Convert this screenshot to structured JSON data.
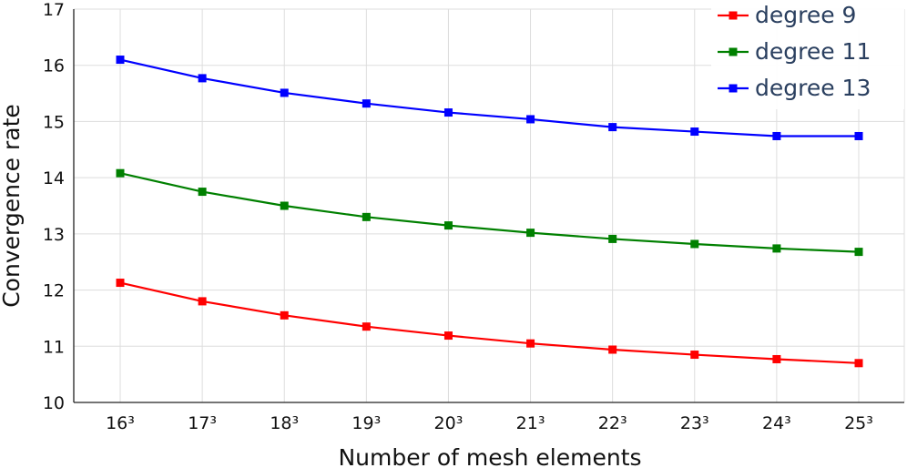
{
  "chart_data": {
    "type": "line",
    "title": "",
    "xlabel": "Number of mesh elements",
    "ylabel": "Convergence rate",
    "ylim": [
      10,
      17
    ],
    "yticks": [
      10,
      11,
      12,
      13,
      14,
      15,
      16,
      17
    ],
    "x": [
      16,
      17,
      18,
      19,
      20,
      21,
      22,
      23,
      24,
      25
    ],
    "x_tick_labels": [
      "16³",
      "17³",
      "18³",
      "19³",
      "20³",
      "21³",
      "22³",
      "23³",
      "24³",
      "25³"
    ],
    "grid": true,
    "legend_position": "top-right",
    "series": [
      {
        "name": "degree 9",
        "color": "#ff0000",
        "values": [
          12.13,
          11.8,
          11.55,
          11.35,
          11.19,
          11.05,
          10.94,
          10.85,
          10.77,
          10.7
        ]
      },
      {
        "name": "degree 11",
        "color": "#008000",
        "values": [
          14.08,
          13.75,
          13.5,
          13.3,
          13.15,
          13.02,
          12.91,
          12.82,
          12.74,
          12.68
        ]
      },
      {
        "name": "degree 13",
        "color": "#0000ff",
        "values": [
          16.1,
          15.77,
          15.51,
          15.32,
          15.16,
          15.04,
          14.9,
          14.82,
          14.74,
          14.74
        ]
      }
    ]
  }
}
